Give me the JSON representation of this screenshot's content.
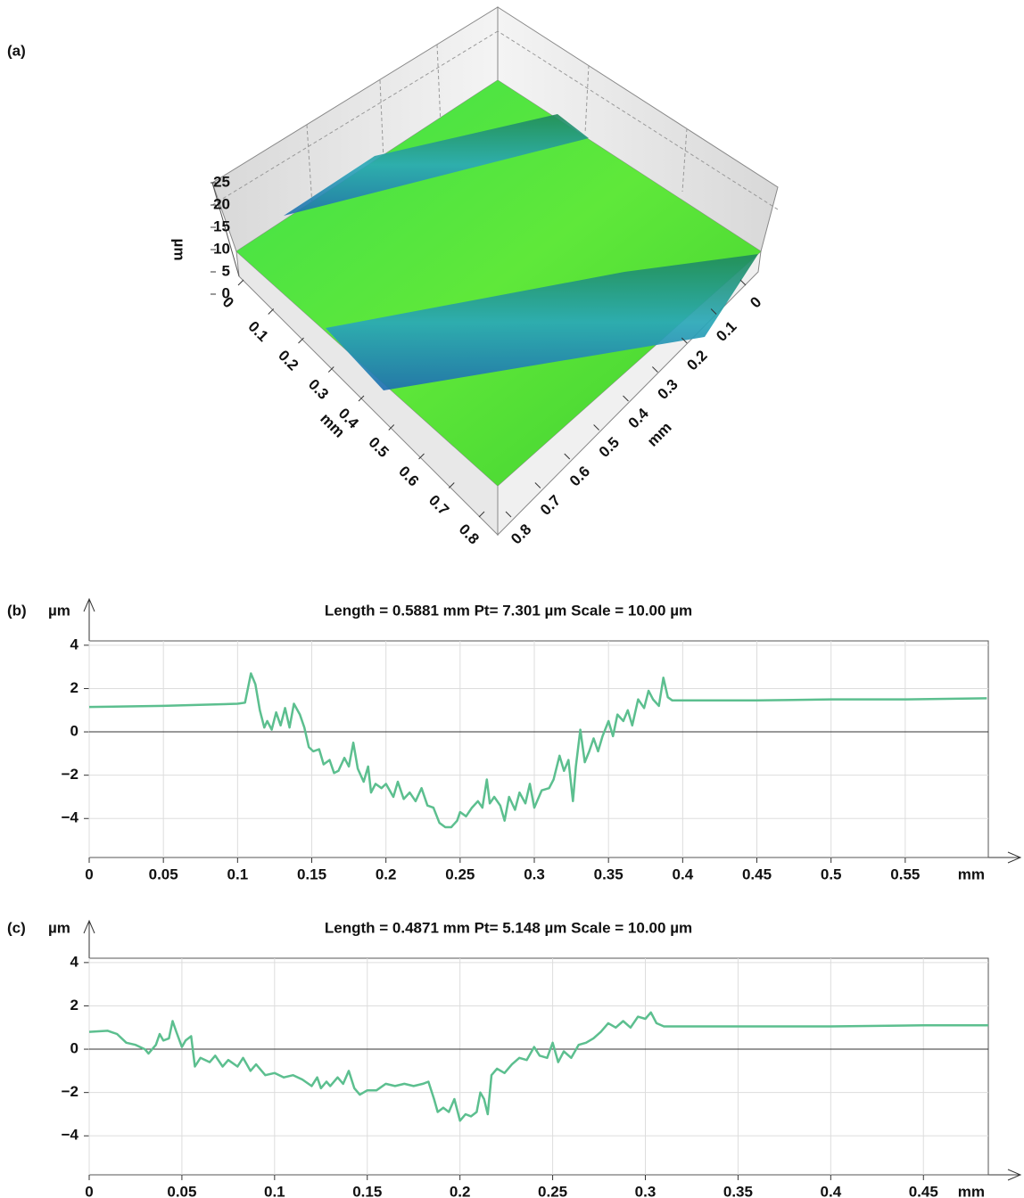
{
  "chart_data": [
    {
      "type": "surface3d",
      "label": "(a)",
      "zlabel": "µm",
      "xlabel": "mm",
      "ylabel": "mm",
      "zlim": [
        0,
        25
      ],
      "zticks": [
        0,
        5,
        10,
        15,
        20,
        25
      ],
      "xlim": [
        0,
        0.8
      ],
      "xticks": [
        0,
        0.1,
        0.2,
        0.3,
        0.4,
        0.5,
        0.6,
        0.7,
        0.8
      ],
      "ylim": [
        0,
        0.8
      ],
      "yticks": [
        0,
        0.1,
        0.2,
        0.3,
        0.4,
        0.5,
        0.6,
        0.7,
        0.8
      ]
    },
    {
      "type": "line",
      "label": "(b)",
      "title": "Length = 0.5881 mm Pt= 7.301 µm Scale = 10.00 µm",
      "ylabel": "µm",
      "xlabel": "mm",
      "xlim": [
        0,
        0.606
      ],
      "xticks": [
        0,
        0.05,
        0.1,
        0.15,
        0.2,
        0.25,
        0.3,
        0.35,
        0.4,
        0.45,
        0.5,
        0.55
      ],
      "ylim": [
        -5.8,
        4.2
      ],
      "yticks": [
        {
          "value": -4,
          "label": "−4"
        },
        {
          "value": -2,
          "label": "−2"
        },
        0,
        2,
        4
      ],
      "grid": true,
      "x": [
        0,
        0.05,
        0.1,
        0.105,
        0.109,
        0.112,
        0.115,
        0.118,
        0.12,
        0.123,
        0.126,
        0.129,
        0.132,
        0.135,
        0.138,
        0.142,
        0.145,
        0.148,
        0.151,
        0.155,
        0.158,
        0.162,
        0.165,
        0.168,
        0.172,
        0.175,
        0.178,
        0.181,
        0.185,
        0.188,
        0.19,
        0.193,
        0.197,
        0.2,
        0.205,
        0.208,
        0.212,
        0.216,
        0.22,
        0.224,
        0.228,
        0.232,
        0.236,
        0.24,
        0.244,
        0.248,
        0.25,
        0.254,
        0.258,
        0.262,
        0.265,
        0.268,
        0.27,
        0.273,
        0.277,
        0.28,
        0.283,
        0.287,
        0.29,
        0.294,
        0.297,
        0.3,
        0.305,
        0.31,
        0.313,
        0.317,
        0.32,
        0.323,
        0.326,
        0.328,
        0.331,
        0.334,
        0.337,
        0.34,
        0.343,
        0.346,
        0.35,
        0.353,
        0.356,
        0.36,
        0.363,
        0.366,
        0.37,
        0.374,
        0.377,
        0.38,
        0.384,
        0.387,
        0.39,
        0.393,
        0.4,
        0.45,
        0.5,
        0.55,
        0.605
      ],
      "series": [
        {
          "color": "#5cbf8f",
          "values": [
            1.15,
            1.2,
            1.3,
            1.35,
            2.7,
            2.2,
            1.0,
            0.2,
            0.5,
            0.1,
            0.9,
            0.3,
            1.1,
            0.2,
            1.3,
            0.8,
            0.2,
            -0.7,
            -0.9,
            -0.8,
            -1.5,
            -1.3,
            -1.9,
            -1.8,
            -1.2,
            -1.6,
            -0.5,
            -1.7,
            -2.3,
            -1.6,
            -2.8,
            -2.4,
            -2.6,
            -2.4,
            -3.0,
            -2.3,
            -3.1,
            -2.8,
            -3.2,
            -2.6,
            -3.4,
            -3.5,
            -4.2,
            -4.4,
            -4.4,
            -4.1,
            -3.7,
            -3.9,
            -3.5,
            -3.2,
            -3.5,
            -2.2,
            -3.3,
            -3.0,
            -3.4,
            -4.1,
            -3.0,
            -3.6,
            -2.8,
            -3.3,
            -2.4,
            -3.5,
            -2.7,
            -2.6,
            -2.2,
            -1.1,
            -1.8,
            -1.3,
            -3.2,
            -1.6,
            0.1,
            -1.4,
            -0.9,
            -0.3,
            -0.9,
            -0.2,
            0.5,
            -0.2,
            0.8,
            0.5,
            1.0,
            0.3,
            1.5,
            1.1,
            1.9,
            1.5,
            1.2,
            2.5,
            1.6,
            1.45,
            1.45,
            1.45,
            1.5,
            1.5,
            1.55
          ]
        }
      ]
    },
    {
      "type": "line",
      "label": "(c)",
      "title": "Length = 0.4871 mm Pt= 5.148 µm Scale = 10.00 µm",
      "ylabel": "µm",
      "xlabel": "mm",
      "xlim": [
        0,
        0.485
      ],
      "xticks": [
        0,
        0.05,
        0.1,
        0.15,
        0.2,
        0.25,
        0.3,
        0.35,
        0.4,
        0.45
      ],
      "ylim": [
        -5.8,
        4.2
      ],
      "yticks": [
        {
          "value": -4,
          "label": "−4"
        },
        {
          "value": -2,
          "label": "−2"
        },
        0,
        2,
        4
      ],
      "grid": true,
      "x": [
        0,
        0.01,
        0.015,
        0.02,
        0.025,
        0.03,
        0.032,
        0.036,
        0.038,
        0.04,
        0.043,
        0.045,
        0.047,
        0.05,
        0.052,
        0.055,
        0.057,
        0.06,
        0.065,
        0.068,
        0.072,
        0.075,
        0.08,
        0.083,
        0.087,
        0.09,
        0.095,
        0.1,
        0.105,
        0.11,
        0.115,
        0.12,
        0.123,
        0.125,
        0.128,
        0.13,
        0.134,
        0.137,
        0.14,
        0.143,
        0.146,
        0.15,
        0.155,
        0.16,
        0.165,
        0.17,
        0.175,
        0.18,
        0.183,
        0.186,
        0.188,
        0.191,
        0.194,
        0.197,
        0.2,
        0.203,
        0.206,
        0.209,
        0.211,
        0.213,
        0.215,
        0.217,
        0.22,
        0.224,
        0.228,
        0.232,
        0.236,
        0.24,
        0.243,
        0.247,
        0.25,
        0.253,
        0.256,
        0.26,
        0.264,
        0.268,
        0.272,
        0.276,
        0.28,
        0.284,
        0.288,
        0.292,
        0.296,
        0.3,
        0.303,
        0.306,
        0.31,
        0.35,
        0.4,
        0.45,
        0.485
      ],
      "series": [
        {
          "color": "#5cbf8f",
          "values": [
            0.8,
            0.85,
            0.7,
            0.3,
            0.2,
            0.0,
            -0.2,
            0.2,
            0.7,
            0.4,
            0.5,
            1.3,
            0.8,
            0.1,
            0.4,
            0.6,
            -0.8,
            -0.4,
            -0.6,
            -0.3,
            -0.8,
            -0.5,
            -0.8,
            -0.4,
            -1.0,
            -0.7,
            -1.2,
            -1.1,
            -1.3,
            -1.2,
            -1.4,
            -1.7,
            -1.3,
            -1.8,
            -1.5,
            -1.7,
            -1.3,
            -1.6,
            -1.0,
            -1.8,
            -2.1,
            -1.9,
            -1.9,
            -1.6,
            -1.7,
            -1.6,
            -1.7,
            -1.6,
            -1.5,
            -2.3,
            -2.9,
            -2.7,
            -2.9,
            -2.3,
            -3.3,
            -3.0,
            -3.1,
            -2.9,
            -2.0,
            -2.3,
            -3.0,
            -1.2,
            -0.9,
            -1.1,
            -0.7,
            -0.4,
            -0.5,
            0.1,
            -0.3,
            -0.4,
            0.3,
            -0.6,
            -0.1,
            -0.4,
            0.2,
            0.3,
            0.5,
            0.8,
            1.2,
            1.0,
            1.3,
            1.0,
            1.5,
            1.4,
            1.7,
            1.2,
            1.05,
            1.05,
            1.05,
            1.1,
            1.1
          ]
        }
      ]
    }
  ]
}
